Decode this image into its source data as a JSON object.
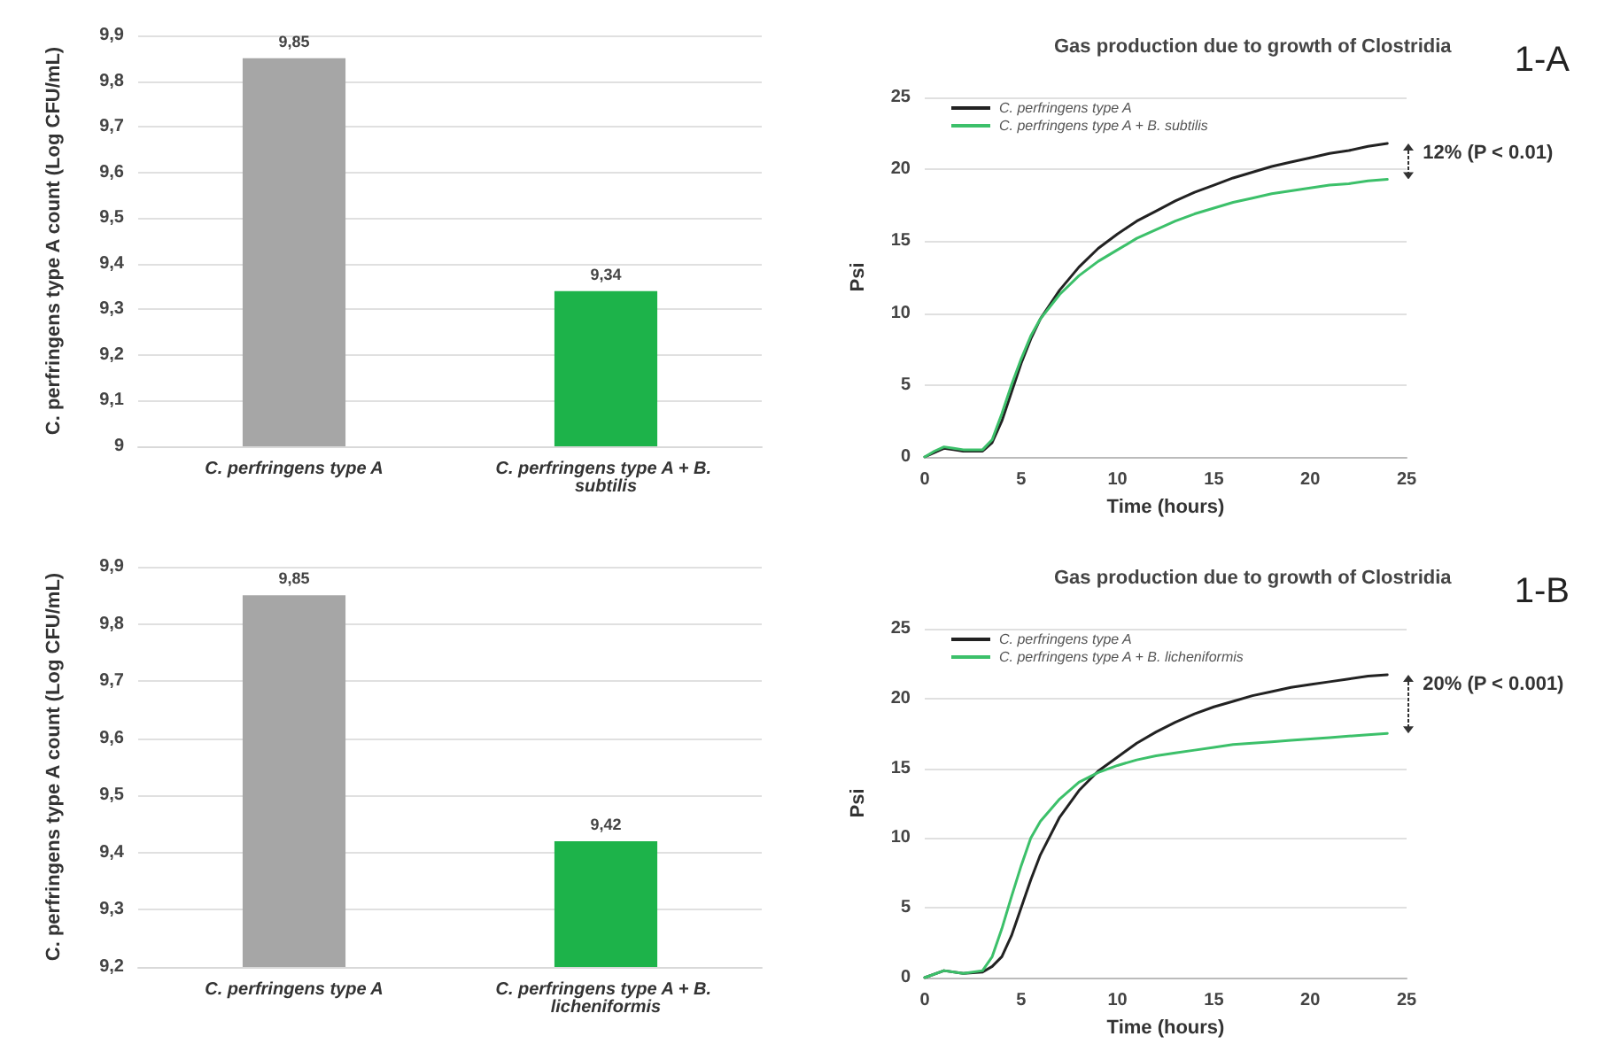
{
  "chart_data": [
    {
      "type": "bar",
      "ylabel": "C. perfringens type A count (Log CFU/mL)",
      "categories": [
        "C. perfringens type A",
        "C. perfringens type A + B. subtilis"
      ],
      "values": [
        9.85,
        9.34
      ],
      "colors": [
        "#a6a6a6",
        "#1db34a"
      ],
      "value_labels": [
        "9,85",
        "9,34"
      ],
      "ylim": [
        9,
        9.9
      ],
      "yticks": [
        {
          "value": 9,
          "label": "9"
        },
        {
          "value": 9.1,
          "label": "9,1"
        },
        {
          "value": 9.2,
          "label": "9,2"
        },
        {
          "value": 9.3,
          "label": "9,3"
        },
        {
          "value": 9.4,
          "label": "9,4"
        },
        {
          "value": 9.5,
          "label": "9,5"
        },
        {
          "value": 9.6,
          "label": "9,6"
        },
        {
          "value": 9.7,
          "label": "9,7"
        },
        {
          "value": 9.8,
          "label": "9,8"
        },
        {
          "value": 9.9,
          "label": "9,9"
        }
      ],
      "grid": "y"
    },
    {
      "type": "line",
      "title": "Gas production due to growth of Clostridia",
      "xlabel": "Time (hours)",
      "ylabel": "Psi",
      "xlim": [
        0,
        25
      ],
      "xticks": [
        0,
        5,
        10,
        15,
        20,
        25
      ],
      "ylim": [
        0,
        25
      ],
      "yticks": [
        0,
        5,
        10,
        15,
        20,
        25
      ],
      "grid": "y",
      "legend": "top left",
      "annotations": [
        "1-A",
        "12% (P < 0.01)"
      ],
      "x": [
        0,
        0.5,
        1,
        1.5,
        2,
        3,
        3.5,
        4,
        4.5,
        5,
        5.5,
        6,
        7,
        8,
        9,
        10,
        11,
        12,
        13,
        14,
        15,
        16,
        17,
        18,
        19,
        20,
        21,
        22,
        23,
        24
      ],
      "series": [
        {
          "name": "C. perfringens type A",
          "color": "#222222",
          "values": [
            0,
            0.3,
            0.6,
            0.5,
            0.4,
            0.4,
            1,
            2.5,
            4.5,
            6.5,
            8.2,
            9.6,
            11.6,
            13.2,
            14.5,
            15.5,
            16.4,
            17.1,
            17.8,
            18.4,
            18.9,
            19.4,
            19.8,
            20.2,
            20.5,
            20.8,
            21.1,
            21.3,
            21.6,
            21.8
          ]
        },
        {
          "name": "C. perfringens type A + B. subtilis",
          "color": "#3cc06a",
          "values": [
            0,
            0.4,
            0.7,
            0.6,
            0.5,
            0.5,
            1.2,
            3,
            5,
            6.8,
            8.4,
            9.6,
            11.3,
            12.6,
            13.6,
            14.4,
            15.2,
            15.8,
            16.4,
            16.9,
            17.3,
            17.7,
            18,
            18.3,
            18.5,
            18.7,
            18.9,
            19,
            19.2,
            19.3
          ]
        }
      ]
    },
    {
      "type": "bar",
      "ylabel": "C. perfringens type A count (Log CFU/mL)",
      "categories": [
        "C. perfringens type A",
        "C. perfringens type A + B. licheniformis"
      ],
      "values": [
        9.85,
        9.42
      ],
      "colors": [
        "#a6a6a6",
        "#1db34a"
      ],
      "value_labels": [
        "9,85",
        "9,42"
      ],
      "ylim": [
        9.2,
        9.9
      ],
      "yticks": [
        {
          "value": 9.2,
          "label": "9,2"
        },
        {
          "value": 9.3,
          "label": "9,3"
        },
        {
          "value": 9.4,
          "label": "9,4"
        },
        {
          "value": 9.5,
          "label": "9,5"
        },
        {
          "value": 9.6,
          "label": "9,6"
        },
        {
          "value": 9.7,
          "label": "9,7"
        },
        {
          "value": 9.8,
          "label": "9,8"
        },
        {
          "value": 9.9,
          "label": "9,9"
        }
      ],
      "grid": "y"
    },
    {
      "type": "line",
      "title": "Gas production due to growth of Clostridia",
      "xlabel": "Time (hours)",
      "ylabel": "Psi",
      "xlim": [
        0,
        25
      ],
      "xticks": [
        0,
        5,
        10,
        15,
        20,
        25
      ],
      "ylim": [
        0,
        25
      ],
      "yticks": [
        0,
        5,
        10,
        15,
        20,
        25
      ],
      "grid": "y",
      "legend": "top left",
      "annotations": [
        "1-B",
        "20% (P < 0.001)"
      ],
      "x": [
        0,
        1,
        2,
        3,
        3.5,
        4,
        4.5,
        5,
        5.5,
        6,
        7,
        8,
        9,
        10,
        11,
        12,
        13,
        14,
        15,
        16,
        17,
        18,
        19,
        20,
        21,
        22,
        23,
        24
      ],
      "series": [
        {
          "name": "C. perfringens type A",
          "color": "#222222",
          "values": [
            0,
            0.5,
            0.3,
            0.4,
            0.8,
            1.5,
            3,
            5,
            7,
            8.8,
            11.5,
            13.4,
            14.8,
            15.8,
            16.8,
            17.6,
            18.3,
            18.9,
            19.4,
            19.8,
            20.2,
            20.5,
            20.8,
            21,
            21.2,
            21.4,
            21.6,
            21.7
          ]
        },
        {
          "name": "C. perfringens type A + B. licheniformis",
          "color": "#3cc06a",
          "values": [
            0,
            0.5,
            0.3,
            0.5,
            1.5,
            3.5,
            5.8,
            8,
            10,
            11.2,
            12.8,
            14,
            14.7,
            15.2,
            15.6,
            15.9,
            16.1,
            16.3,
            16.5,
            16.7,
            16.8,
            16.9,
            17,
            17.1,
            17.2,
            17.3,
            17.4,
            17.5
          ]
        }
      ]
    }
  ]
}
